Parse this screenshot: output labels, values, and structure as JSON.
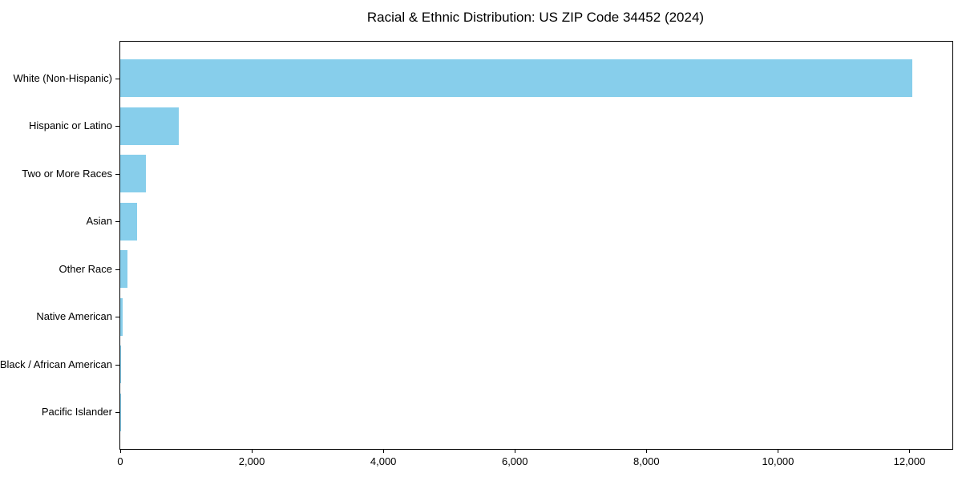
{
  "chart_data": {
    "type": "bar",
    "orientation": "horizontal",
    "title": "Racial & Ethnic Distribution: US ZIP Code 34452 (2024)",
    "categories": [
      "White (Non-Hispanic)",
      "Hispanic or Latino",
      "Two or More Races",
      "Asian",
      "Other Race",
      "Native American",
      "Black / African American",
      "Pacific Islander"
    ],
    "values": [
      12045,
      890,
      390,
      250,
      115,
      36,
      9,
      2
    ],
    "bar_color": "#87CEEB",
    "axis_color": "#000000",
    "text_color": "#000000",
    "background_color": "#ffffff",
    "xlabel": "",
    "ylabel": "",
    "xlim": [
      0,
      12652
    ],
    "x_ticks": [
      0,
      2000,
      4000,
      6000,
      8000,
      10000,
      12000
    ],
    "x_tick_labels": [
      "0",
      "2,000",
      "4,000",
      "6,000",
      "8,000",
      "10,000",
      "12,000"
    ],
    "grid": false,
    "legend": null,
    "sort_order": "descending"
  }
}
